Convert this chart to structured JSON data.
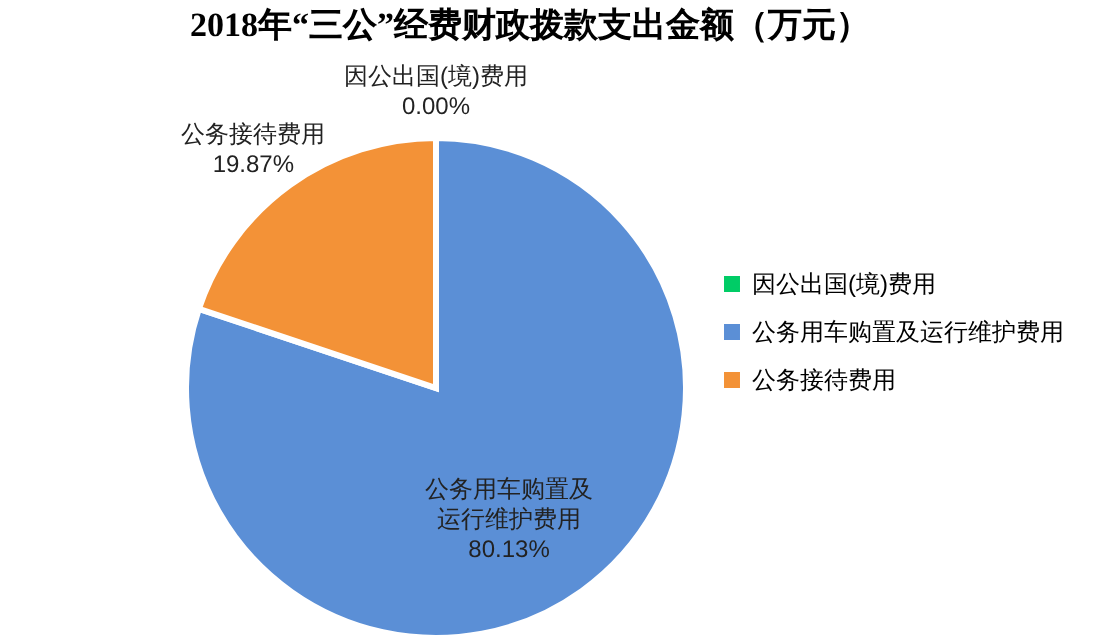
{
  "chart_data": {
    "type": "pie",
    "title": "2018年“三公”经费财政拨款支出金额（万元）",
    "categories": [
      "因公出国(境)费用",
      "公务用车购置及运行维护费用",
      "公务接待费用"
    ],
    "values": [
      0.0,
      80.13,
      19.87
    ],
    "colors": [
      "#00cc66",
      "#5b8fd6",
      "#f39237"
    ],
    "value_labels": [
      "因公出国(境)费用\n0.00%",
      "公务用车购置及运行维护费用\n80.13%",
      "公务接待费用\n19.87%"
    ],
    "legend": "right"
  }
}
